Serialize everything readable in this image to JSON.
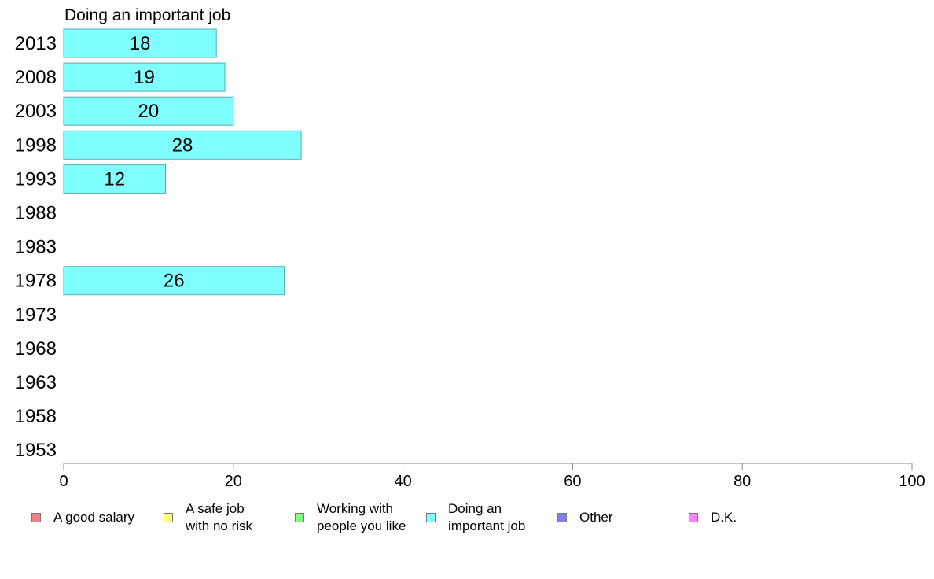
{
  "chart_data": {
    "type": "bar",
    "orientation": "horizontal",
    "title": "Doing an important job",
    "categories": [
      "2013",
      "2008",
      "2003",
      "1998",
      "1993",
      "1988",
      "1983",
      "1978",
      "1973",
      "1968",
      "1963",
      "1958",
      "1953"
    ],
    "series": [
      {
        "name": "Doing an important job",
        "color": "#80ffff",
        "values": [
          18,
          19,
          20,
          28,
          12,
          null,
          null,
          26,
          null,
          null,
          null,
          null,
          null
        ]
      }
    ],
    "xlim": [
      0,
      100
    ],
    "xticks": [
      0,
      20,
      40,
      60,
      80,
      100
    ],
    "grid": false,
    "legend_position": "bottom",
    "legend": [
      {
        "label": "A good salary",
        "color": "#f08080"
      },
      {
        "label": "A safe job\nwith no risk",
        "color": "#ffff80"
      },
      {
        "label": "Working with\npeople you like",
        "color": "#80ff80"
      },
      {
        "label": "Doing an\nimportant job",
        "color": "#80ffff"
      },
      {
        "label": "Other",
        "color": "#8080f0"
      },
      {
        "label": "D.K.",
        "color": "#ff80ff"
      }
    ]
  }
}
